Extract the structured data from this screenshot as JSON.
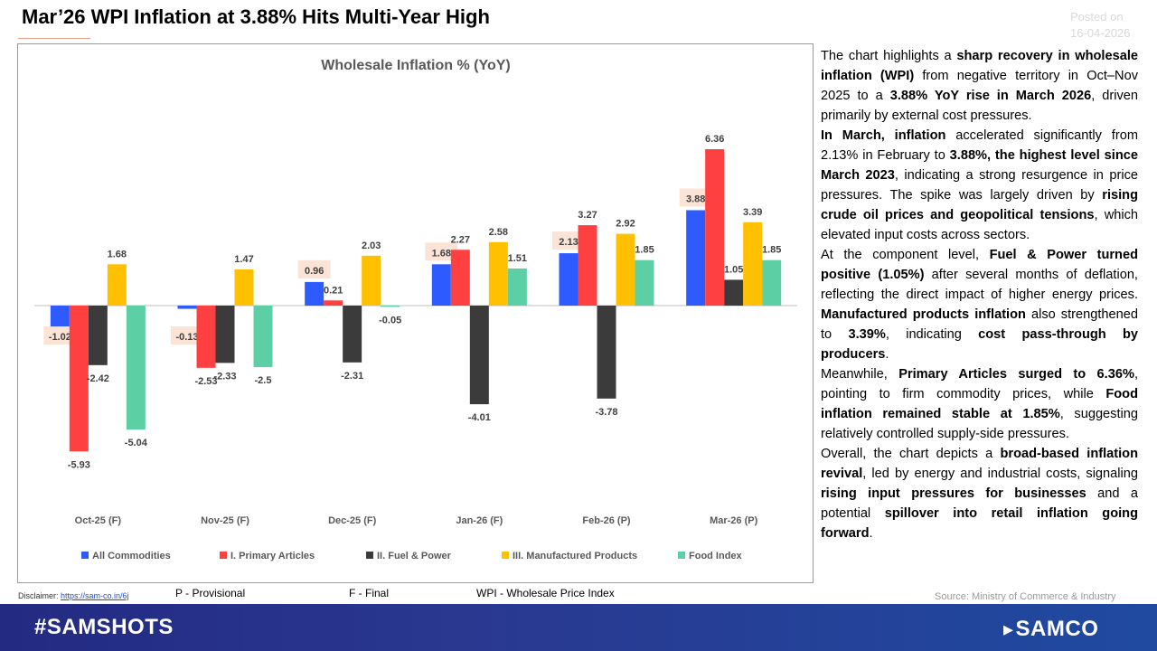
{
  "header": {
    "title": "Mar’26 WPI Inflation at 3.88%  Hits Multi-Year High",
    "posted_label": "Posted on",
    "posted_date": "16-04-2026"
  },
  "chart_data": {
    "type": "bar",
    "title": "Wholesale Inflation % (YoY)",
    "categories": [
      "Oct-25 (F)",
      "Nov-25 (F)",
      "Dec-25 (F)",
      "Jan-26 (F)",
      "Feb-26 (P)",
      "Mar-26 (P)"
    ],
    "series": [
      {
        "name": "All Commodities",
        "color": "#2e5bff",
        "values": [
          -1.02,
          -0.13,
          0.96,
          1.68,
          2.13,
          3.88
        ],
        "highlight_labels": true
      },
      {
        "name": "I. Primary Articles",
        "color": "#ff4040",
        "values": [
          -5.93,
          -2.53,
          0.21,
          2.27,
          3.27,
          6.36
        ]
      },
      {
        "name": "II. Fuel & Power",
        "color": "#3b3b3b",
        "values": [
          -2.42,
          -2.33,
          -2.31,
          -4.01,
          -3.78,
          1.05
        ]
      },
      {
        "name": "III. Manufactured Products",
        "color": "#ffc000",
        "values": [
          1.68,
          1.47,
          2.03,
          2.58,
          2.92,
          3.39
        ]
      },
      {
        "name": "Food Index",
        "color": "#5ccfa5",
        "values": [
          -5.04,
          -2.5,
          -0.05,
          1.51,
          1.85,
          1.85
        ]
      }
    ],
    "ylim": [
      -6.5,
      7.2
    ],
    "grid": false,
    "legend": "bottom",
    "label_highlight_color": "#fbe3d6"
  },
  "commentary": [
    [
      {
        "t": "The chart highlights a "
      },
      {
        "t": "sharp recovery in wholesale inflation (WPI)",
        "b": true
      },
      {
        "t": " from negative territory in Oct–Nov 2025 to a "
      },
      {
        "t": "3.88% YoY rise in March 2026",
        "b": true
      },
      {
        "t": ", driven primarily by external cost pressures."
      }
    ],
    [
      {
        "t": "In March, inflation",
        "b": true
      },
      {
        "t": " accelerated significantly from 2.13% in February to "
      },
      {
        "t": "3.88%, the highest level since March 2023",
        "b": true
      },
      {
        "t": ", indicating a strong resurgence in price pressures. The spike was largely driven by "
      },
      {
        "t": "rising crude oil prices and geopolitical tensions",
        "b": true
      },
      {
        "t": ", which elevated input costs across sectors."
      }
    ],
    [
      {
        "t": "At the component level, "
      },
      {
        "t": "Fuel & Power turned positive (1.05%)",
        "b": true
      },
      {
        "t": " after several months of deflation, reflecting the direct impact of higher energy prices. "
      },
      {
        "t": "Manufactured products inflation",
        "b": true
      },
      {
        "t": " also strengthened to "
      },
      {
        "t": "3.39%",
        "b": true
      },
      {
        "t": ", indicating "
      },
      {
        "t": "cost pass-through by producers",
        "b": true
      },
      {
        "t": "."
      }
    ],
    [
      {
        "t": "Meanwhile, "
      },
      {
        "t": "Primary Articles surged to 6.36%",
        "b": true
      },
      {
        "t": ", pointing to firm commodity prices, while "
      },
      {
        "t": "Food inflation remained stable at 1.85%",
        "b": true
      },
      {
        "t": ", suggesting relatively controlled supply-side pressures."
      }
    ],
    [
      {
        "t": "Overall, the chart depicts a "
      },
      {
        "t": "broad-based inflation revival",
        "b": true
      },
      {
        "t": ", led by energy and industrial costs, signaling "
      },
      {
        "t": "rising input pressures for businesses",
        "b": true
      },
      {
        "t": " and a potential "
      },
      {
        "t": "spillover into retail inflation going forward",
        "b": true
      },
      {
        "t": "."
      }
    ]
  ],
  "footer": {
    "disclaimer_label": "Disclaimer:",
    "disclaimer_link": "https://sam-co.in/6j",
    "note_provisional": "P - Provisional",
    "note_final": "F -  Final",
    "note_wpi": "WPI - Wholesale Price Index",
    "source": "Source: Ministry of Commerce & Industry",
    "hashtag": "#SAMSHOTS",
    "brand": "SAMCO",
    "brand_mark": "▸"
  }
}
